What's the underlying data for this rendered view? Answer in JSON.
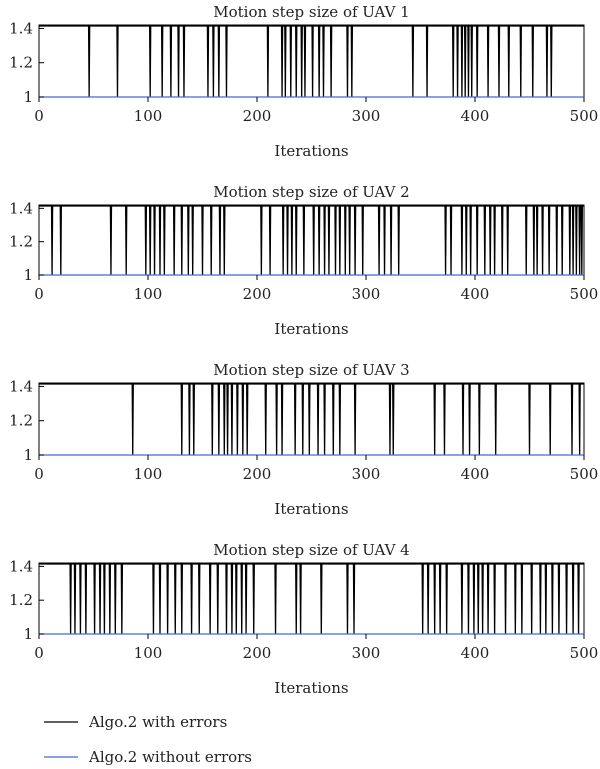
{
  "chart_data": [
    {
      "type": "line",
      "title": "Motion step size of UAV 1",
      "xlabel": "Iterations",
      "ylabel": "",
      "xlim": [
        0,
        500
      ],
      "ylim": [
        1,
        1.42
      ],
      "xticks": [
        "0",
        "100",
        "200",
        "300",
        "400",
        "500"
      ],
      "yticks": [
        "1",
        "1.2",
        "1.4"
      ],
      "series": [
        {
          "name": "Algo.2 with errors",
          "color": "#000000",
          "high": 1.414,
          "low": 1.0,
          "dip_x": [
            46,
            72,
            102,
            113,
            121,
            128,
            133,
            155,
            160,
            165,
            172,
            210,
            223,
            226,
            231,
            236,
            241,
            244,
            251,
            257,
            261,
            268,
            283,
            287,
            343,
            356,
            380,
            384,
            388,
            391,
            394,
            397,
            402,
            412,
            422,
            431,
            442,
            453,
            466,
            470
          ]
        },
        {
          "name": "Algo.2 without errors",
          "color": "#4169e1",
          "constant": 1.0
        }
      ]
    },
    {
      "type": "line",
      "title": "Motion step size of UAV 2",
      "xlabel": "Iterations",
      "ylabel": "",
      "xlim": [
        0,
        500
      ],
      "ylim": [
        1,
        1.42
      ],
      "xticks": [
        "0",
        "100",
        "200",
        "300",
        "400",
        "500"
      ],
      "yticks": [
        "1",
        "1.2",
        "1.4"
      ],
      "series": [
        {
          "name": "Algo.2 with errors",
          "color": "#000000",
          "high": 1.414,
          "low": 1.0,
          "dip_x": [
            12,
            20,
            66,
            80,
            98,
            102,
            106,
            111,
            115,
            124,
            131,
            137,
            141,
            150,
            158,
            166,
            170,
            204,
            212,
            224,
            228,
            232,
            236,
            243,
            252,
            257,
            262,
            266,
            272,
            276,
            281,
            285,
            290,
            297,
            312,
            317,
            323,
            330,
            373,
            378,
            388,
            392,
            396,
            402,
            409,
            414,
            418,
            425,
            430,
            447,
            454,
            457,
            462,
            468,
            475,
            480,
            487,
            490,
            493,
            496,
            498
          ]
        },
        {
          "name": "Algo.2 without errors",
          "color": "#4169e1",
          "constant": 1.0
        }
      ]
    },
    {
      "type": "line",
      "title": "Motion step size of UAV 3",
      "xlabel": "Iterations",
      "ylabel": "",
      "xlim": [
        0,
        500
      ],
      "ylim": [
        1,
        1.42
      ],
      "xticks": [
        "0",
        "100",
        "200",
        "300",
        "400",
        "500"
      ],
      "yticks": [
        "1",
        "1.2",
        "1.4"
      ],
      "series": [
        {
          "name": "Algo.2 with errors",
          "color": "#000000",
          "high": 1.414,
          "low": 1.0,
          "dip_x": [
            86,
            131,
            138,
            142,
            159,
            165,
            170,
            173,
            177,
            182,
            187,
            191,
            208,
            218,
            223,
            235,
            242,
            248,
            256,
            262,
            270,
            276,
            290,
            322,
            325,
            363,
            372,
            389,
            395,
            404,
            419,
            450,
            469,
            489,
            496
          ]
        },
        {
          "name": "Algo.2 without errors",
          "color": "#4169e1",
          "constant": 1.0
        }
      ]
    },
    {
      "type": "line",
      "title": "Motion step size of UAV 4",
      "xlabel": "Iterations",
      "ylabel": "",
      "xlim": [
        0,
        500
      ],
      "ylim": [
        1,
        1.42
      ],
      "xticks": [
        "0",
        "100",
        "200",
        "300",
        "400",
        "500"
      ],
      "yticks": [
        "1",
        "1.2",
        "1.4"
      ],
      "series": [
        {
          "name": "Algo.2 with errors",
          "color": "#000000",
          "high": 1.414,
          "low": 1.0,
          "dip_x": [
            29,
            33,
            38,
            43,
            51,
            56,
            60,
            65,
            70,
            76,
            105,
            111,
            118,
            125,
            131,
            140,
            147,
            157,
            164,
            172,
            177,
            181,
            186,
            190,
            197,
            217,
            236,
            240,
            259,
            283,
            289,
            352,
            357,
            363,
            368,
            374,
            388,
            394,
            399,
            403,
            407,
            412,
            418,
            428,
            437,
            443,
            452,
            460,
            465,
            471,
            477,
            484,
            490,
            495
          ]
        },
        {
          "name": "Algo.2 without errors",
          "color": "#4169e1",
          "constant": 1.0
        }
      ]
    }
  ],
  "legend": {
    "placement": "bottom-left",
    "items": [
      {
        "label": "Algo.2 with errors",
        "color": "#000000"
      },
      {
        "label": "Algo.2 without errors",
        "color": "#4169e1"
      }
    ]
  }
}
